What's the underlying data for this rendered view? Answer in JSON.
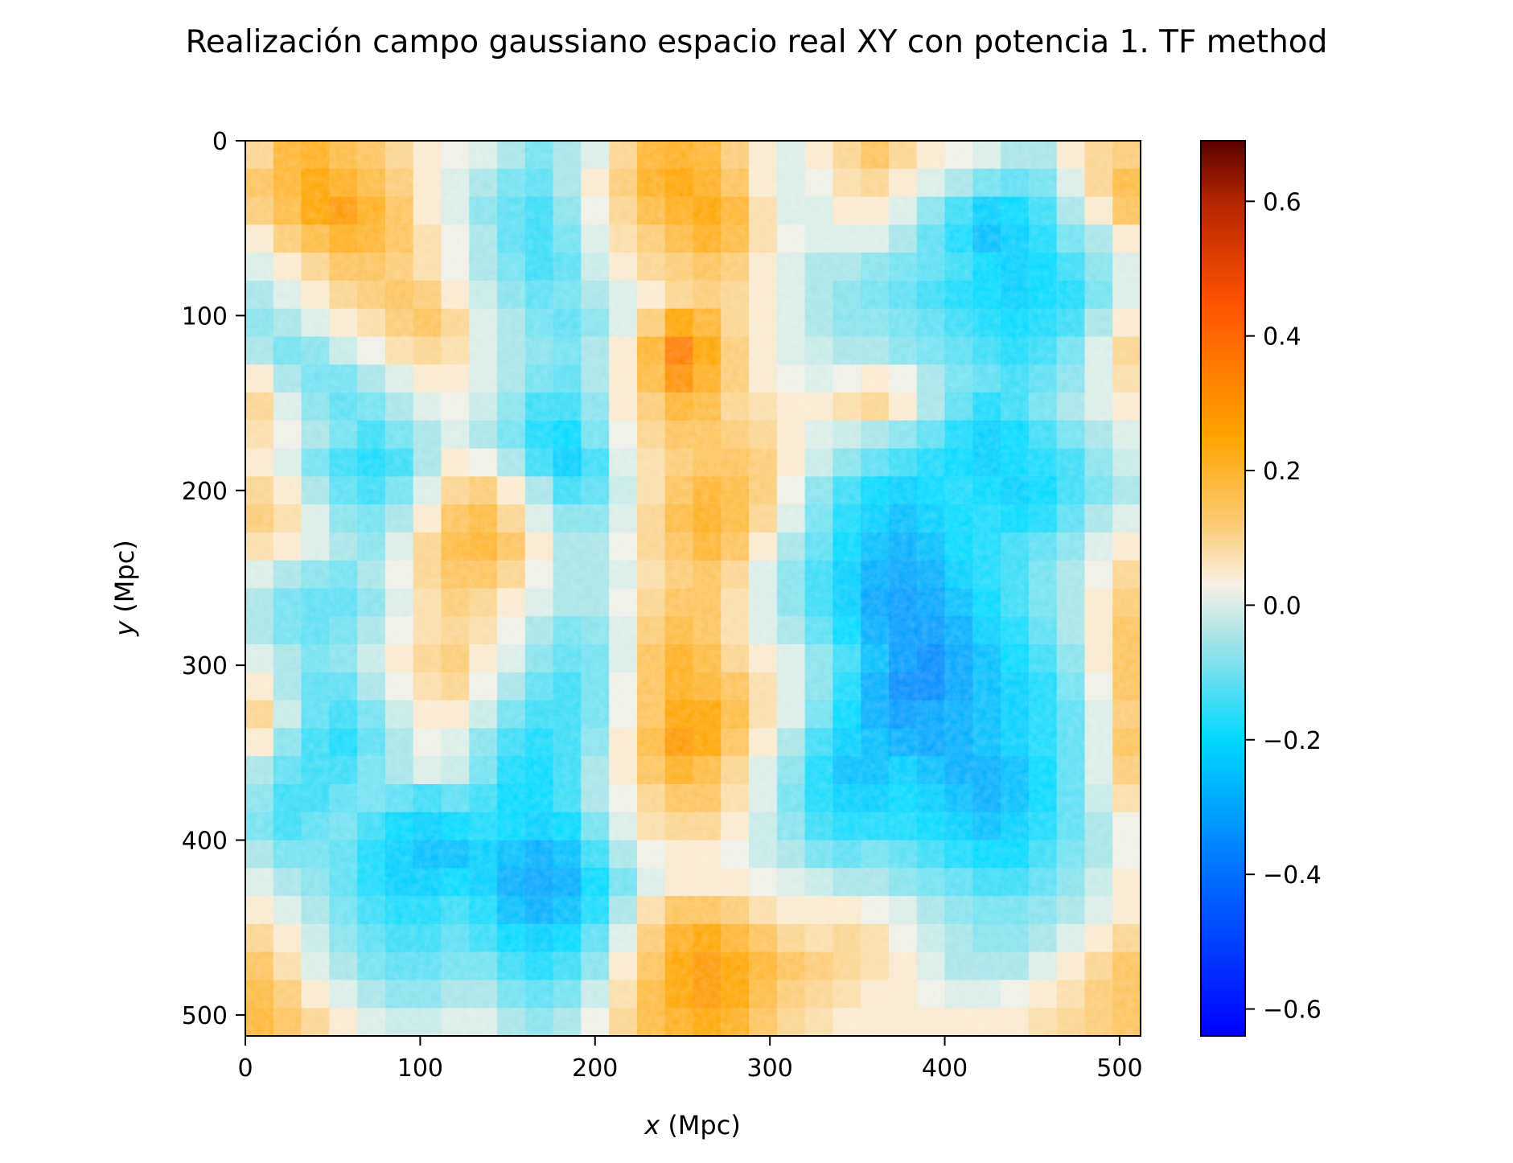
{
  "chart_data": {
    "type": "heatmap",
    "title": "Realización campo gaussiano espacio real XY con potencia 1. TF method",
    "xlabel_var": "x",
    "xlabel_unit": " (Mpc)",
    "ylabel_var": "y",
    "ylabel_unit": " (Mpc)",
    "xlim": [
      0,
      512
    ],
    "ylim": [
      512,
      0
    ],
    "y_inverted": true,
    "x_ticks": [
      0,
      100,
      200,
      300,
      400,
      500
    ],
    "y_ticks": [
      0,
      100,
      200,
      300,
      400,
      500
    ],
    "x_tick_labels": [
      "0",
      "100",
      "200",
      "300",
      "400",
      "500"
    ],
    "y_tick_labels": [
      "0",
      "100",
      "200",
      "300",
      "400",
      "500"
    ],
    "grid": false,
    "colorbar": {
      "range": [
        -0.64,
        0.69
      ],
      "ticks": [
        -0.6,
        -0.4,
        -0.2,
        0.0,
        0.2,
        0.4,
        0.6
      ],
      "tick_labels": [
        "−0.6",
        "−0.4",
        "−0.2",
        "0.0",
        "0.2",
        "0.4",
        "0.6"
      ],
      "stops": [
        {
          "v": -0.64,
          "color": "#0000ff"
        },
        {
          "v": -0.4,
          "color": "#0070ff"
        },
        {
          "v": -0.2,
          "color": "#00d8ff"
        },
        {
          "v": -0.05,
          "color": "#a6e4e8"
        },
        {
          "v": 0.03,
          "color": "#f8f1e6"
        },
        {
          "v": 0.12,
          "color": "#fccb74"
        },
        {
          "v": 0.25,
          "color": "#ffa400"
        },
        {
          "v": 0.45,
          "color": "#ff5200"
        },
        {
          "v": 0.6,
          "color": "#b42500"
        },
        {
          "v": 0.69,
          "color": "#5b0000"
        }
      ]
    },
    "field": {
      "description_values": "approximate smoothed field sampled on a 32x32 grid (rows = y 0..512, cols = x 0..512)",
      "grid_size": 32,
      "values": [
        [
          0.1,
          0.2,
          0.22,
          0.18,
          0.15,
          0.1,
          0.05,
          0.02,
          0.0,
          -0.05,
          -0.1,
          -0.05,
          0.0,
          0.1,
          0.2,
          0.22,
          0.2,
          0.12,
          0.05,
          0.0,
          0.05,
          0.1,
          0.15,
          0.1,
          0.05,
          0.02,
          0.0,
          -0.05,
          -0.05,
          0.05,
          0.1,
          0.12
        ],
        [
          0.15,
          0.2,
          0.25,
          0.22,
          0.18,
          0.12,
          0.05,
          0.0,
          -0.05,
          -0.1,
          -0.12,
          -0.05,
          0.05,
          0.12,
          0.22,
          0.25,
          0.22,
          0.15,
          0.05,
          0.0,
          0.02,
          0.08,
          0.1,
          0.05,
          0.0,
          -0.05,
          -0.1,
          -0.12,
          -0.1,
          0.0,
          0.1,
          0.18
        ],
        [
          0.12,
          0.18,
          0.25,
          0.28,
          0.22,
          0.15,
          0.05,
          0.0,
          -0.08,
          -0.12,
          -0.15,
          -0.08,
          0.02,
          0.1,
          0.18,
          0.22,
          0.25,
          0.2,
          0.08,
          0.0,
          0.0,
          0.05,
          0.05,
          0.0,
          -0.08,
          -0.15,
          -0.22,
          -0.2,
          -0.15,
          -0.05,
          0.05,
          0.15
        ],
        [
          0.05,
          0.12,
          0.18,
          0.22,
          0.2,
          0.15,
          0.08,
          0.02,
          -0.05,
          -0.12,
          -0.15,
          -0.1,
          0.0,
          0.08,
          0.12,
          0.18,
          0.22,
          0.18,
          0.08,
          0.02,
          0.0,
          0.0,
          0.0,
          -0.05,
          -0.12,
          -0.18,
          -0.25,
          -0.22,
          -0.18,
          -0.1,
          -0.05,
          0.05
        ],
        [
          0.0,
          0.05,
          0.1,
          0.15,
          0.15,
          0.12,
          0.08,
          0.02,
          -0.05,
          -0.1,
          -0.15,
          -0.12,
          -0.02,
          0.05,
          0.1,
          0.12,
          0.15,
          0.12,
          0.05,
          0.0,
          -0.05,
          -0.05,
          -0.08,
          -0.1,
          -0.12,
          -0.15,
          -0.2,
          -0.22,
          -0.2,
          -0.15,
          -0.08,
          0.0
        ],
        [
          -0.05,
          0.0,
          0.05,
          0.1,
          0.12,
          0.15,
          0.12,
          0.05,
          -0.02,
          -0.08,
          -0.12,
          -0.1,
          -0.05,
          0.0,
          0.05,
          0.1,
          0.12,
          0.1,
          0.05,
          0.0,
          -0.05,
          -0.08,
          -0.1,
          -0.12,
          -0.15,
          -0.18,
          -0.2,
          -0.22,
          -0.2,
          -0.18,
          -0.1,
          0.0
        ],
        [
          -0.08,
          -0.05,
          0.0,
          0.05,
          0.08,
          0.12,
          0.15,
          0.1,
          0.0,
          -0.05,
          -0.1,
          -0.12,
          -0.08,
          0.0,
          0.12,
          0.25,
          0.2,
          0.1,
          0.05,
          0.0,
          -0.05,
          -0.08,
          -0.08,
          -0.1,
          -0.12,
          -0.15,
          -0.18,
          -0.2,
          -0.18,
          -0.15,
          -0.05,
          0.05
        ],
        [
          -0.05,
          -0.1,
          -0.08,
          -0.02,
          0.02,
          0.08,
          0.1,
          0.08,
          0.0,
          -0.05,
          -0.08,
          -0.1,
          -0.05,
          0.05,
          0.2,
          0.35,
          0.25,
          0.12,
          0.05,
          0.0,
          -0.02,
          -0.05,
          -0.05,
          -0.08,
          -0.1,
          -0.12,
          -0.15,
          -0.18,
          -0.15,
          -0.1,
          0.0,
          0.1
        ],
        [
          0.05,
          -0.05,
          -0.1,
          -0.1,
          -0.05,
          0.0,
          0.05,
          0.05,
          0.0,
          -0.05,
          -0.1,
          -0.12,
          -0.05,
          0.05,
          0.18,
          0.3,
          0.22,
          0.12,
          0.05,
          0.02,
          0.0,
          0.02,
          0.05,
          0.02,
          -0.05,
          -0.1,
          -0.12,
          -0.15,
          -0.12,
          -0.08,
          0.0,
          0.08
        ],
        [
          0.1,
          0.0,
          -0.08,
          -0.12,
          -0.1,
          -0.05,
          0.0,
          0.02,
          -0.02,
          -0.08,
          -0.15,
          -0.15,
          -0.08,
          0.05,
          0.12,
          0.2,
          0.18,
          0.1,
          0.08,
          0.05,
          0.05,
          0.08,
          0.1,
          0.05,
          -0.05,
          -0.12,
          -0.18,
          -0.15,
          -0.1,
          -0.05,
          0.0,
          0.05
        ],
        [
          0.08,
          0.02,
          -0.05,
          -0.1,
          -0.15,
          -0.1,
          -0.05,
          0.0,
          -0.05,
          -0.1,
          -0.18,
          -0.2,
          -0.1,
          0.02,
          0.1,
          0.15,
          0.15,
          0.12,
          0.1,
          0.05,
          0.0,
          -0.02,
          -0.05,
          -0.08,
          -0.12,
          -0.18,
          -0.22,
          -0.2,
          -0.15,
          -0.1,
          -0.05,
          0.0
        ],
        [
          0.05,
          0.0,
          -0.1,
          -0.15,
          -0.18,
          -0.15,
          -0.05,
          0.05,
          0.02,
          -0.05,
          -0.15,
          -0.22,
          -0.15,
          0.0,
          0.08,
          0.12,
          0.15,
          0.15,
          0.12,
          0.05,
          -0.02,
          -0.08,
          -0.12,
          -0.15,
          -0.18,
          -0.2,
          -0.22,
          -0.2,
          -0.18,
          -0.15,
          -0.08,
          -0.02
        ],
        [
          0.1,
          0.05,
          -0.05,
          -0.12,
          -0.15,
          -0.1,
          0.0,
          0.1,
          0.12,
          0.05,
          -0.05,
          -0.15,
          -0.12,
          -0.02,
          0.08,
          0.15,
          0.2,
          0.18,
          0.12,
          0.02,
          -0.08,
          -0.15,
          -0.2,
          -0.22,
          -0.2,
          -0.18,
          -0.2,
          -0.22,
          -0.2,
          -0.15,
          -0.1,
          -0.05
        ],
        [
          0.12,
          0.08,
          0.0,
          -0.08,
          -0.1,
          -0.05,
          0.05,
          0.15,
          0.18,
          0.1,
          0.0,
          -0.08,
          -0.08,
          0.0,
          0.1,
          0.18,
          0.22,
          0.18,
          0.1,
          0.0,
          -0.1,
          -0.18,
          -0.22,
          -0.25,
          -0.22,
          -0.2,
          -0.18,
          -0.2,
          -0.18,
          -0.12,
          -0.05,
          0.0
        ],
        [
          0.08,
          0.05,
          0.0,
          -0.05,
          -0.08,
          0.0,
          0.1,
          0.18,
          0.2,
          0.15,
          0.05,
          -0.05,
          -0.05,
          0.02,
          0.1,
          0.15,
          0.2,
          0.15,
          0.05,
          -0.05,
          -0.12,
          -0.2,
          -0.25,
          -0.28,
          -0.25,
          -0.2,
          -0.18,
          -0.15,
          -0.12,
          -0.08,
          0.0,
          0.05
        ],
        [
          0.0,
          -0.05,
          -0.08,
          -0.1,
          -0.05,
          0.02,
          0.1,
          0.15,
          0.15,
          0.1,
          0.02,
          -0.05,
          -0.05,
          0.0,
          0.08,
          0.12,
          0.15,
          0.1,
          0.0,
          -0.08,
          -0.15,
          -0.22,
          -0.28,
          -0.3,
          -0.28,
          -0.22,
          -0.18,
          -0.15,
          -0.1,
          -0.05,
          0.02,
          0.1
        ],
        [
          -0.05,
          -0.1,
          -0.12,
          -0.12,
          -0.08,
          0.0,
          0.08,
          0.12,
          0.1,
          0.05,
          0.0,
          -0.05,
          -0.05,
          0.02,
          0.1,
          0.15,
          0.15,
          0.08,
          0.0,
          -0.08,
          -0.15,
          -0.22,
          -0.3,
          -0.32,
          -0.3,
          -0.25,
          -0.2,
          -0.15,
          -0.1,
          -0.05,
          0.05,
          0.12
        ],
        [
          -0.05,
          -0.1,
          -0.12,
          -0.1,
          -0.05,
          0.02,
          0.08,
          0.1,
          0.08,
          0.02,
          -0.05,
          -0.1,
          -0.08,
          0.0,
          0.12,
          0.18,
          0.15,
          0.08,
          0.0,
          -0.05,
          -0.12,
          -0.2,
          -0.28,
          -0.32,
          -0.32,
          -0.28,
          -0.22,
          -0.18,
          -0.12,
          -0.05,
          0.05,
          0.15
        ],
        [
          0.0,
          -0.05,
          -0.1,
          -0.08,
          -0.02,
          0.05,
          0.1,
          0.12,
          0.05,
          0.0,
          -0.08,
          -0.12,
          -0.1,
          0.0,
          0.15,
          0.22,
          0.18,
          0.1,
          0.05,
          0.0,
          -0.08,
          -0.15,
          -0.25,
          -0.32,
          -0.35,
          -0.3,
          -0.25,
          -0.2,
          -0.15,
          -0.08,
          0.05,
          0.15
        ],
        [
          0.05,
          -0.05,
          -0.12,
          -0.12,
          -0.05,
          0.02,
          0.08,
          0.1,
          0.02,
          -0.05,
          -0.12,
          -0.15,
          -0.1,
          0.02,
          0.15,
          0.22,
          0.2,
          0.15,
          0.08,
          0.0,
          -0.08,
          -0.18,
          -0.28,
          -0.35,
          -0.35,
          -0.3,
          -0.25,
          -0.22,
          -0.18,
          -0.1,
          0.02,
          0.15
        ],
        [
          0.1,
          -0.02,
          -0.12,
          -0.15,
          -0.1,
          -0.02,
          0.05,
          0.05,
          -0.02,
          -0.1,
          -0.15,
          -0.15,
          -0.1,
          0.02,
          0.15,
          0.25,
          0.25,
          0.18,
          0.08,
          0.0,
          -0.1,
          -0.2,
          -0.28,
          -0.32,
          -0.3,
          -0.28,
          -0.25,
          -0.22,
          -0.18,
          -0.12,
          0.0,
          0.12
        ],
        [
          0.05,
          -0.08,
          -0.15,
          -0.18,
          -0.12,
          -0.05,
          0.02,
          0.0,
          -0.08,
          -0.15,
          -0.18,
          -0.15,
          -0.08,
          0.05,
          0.18,
          0.28,
          0.25,
          0.15,
          0.05,
          -0.05,
          -0.15,
          -0.22,
          -0.25,
          -0.28,
          -0.3,
          -0.28,
          -0.25,
          -0.22,
          -0.18,
          -0.12,
          0.0,
          0.15
        ],
        [
          -0.05,
          -0.12,
          -0.15,
          -0.15,
          -0.1,
          -0.05,
          0.0,
          -0.02,
          -0.1,
          -0.18,
          -0.2,
          -0.15,
          -0.05,
          0.05,
          0.15,
          0.22,
          0.18,
          0.1,
          0.0,
          -0.08,
          -0.18,
          -0.25,
          -0.25,
          -0.22,
          -0.25,
          -0.28,
          -0.28,
          -0.25,
          -0.2,
          -0.12,
          0.0,
          0.12
        ],
        [
          -0.08,
          -0.15,
          -0.15,
          -0.12,
          -0.1,
          -0.12,
          -0.15,
          -0.12,
          -0.15,
          -0.2,
          -0.2,
          -0.15,
          -0.05,
          0.02,
          0.1,
          0.15,
          0.15,
          0.08,
          0.0,
          -0.1,
          -0.18,
          -0.22,
          -0.22,
          -0.2,
          -0.22,
          -0.25,
          -0.28,
          -0.25,
          -0.2,
          -0.12,
          -0.02,
          0.08
        ],
        [
          -0.1,
          -0.15,
          -0.12,
          -0.1,
          -0.15,
          -0.2,
          -0.22,
          -0.2,
          -0.18,
          -0.2,
          -0.22,
          -0.2,
          -0.1,
          0.0,
          0.08,
          0.1,
          0.1,
          0.05,
          -0.02,
          -0.08,
          -0.15,
          -0.18,
          -0.18,
          -0.18,
          -0.2,
          -0.22,
          -0.25,
          -0.22,
          -0.18,
          -0.12,
          -0.05,
          0.02
        ],
        [
          -0.05,
          -0.1,
          -0.1,
          -0.12,
          -0.18,
          -0.22,
          -0.25,
          -0.25,
          -0.22,
          -0.25,
          -0.28,
          -0.25,
          -0.15,
          -0.05,
          0.02,
          0.05,
          0.05,
          0.02,
          -0.02,
          -0.05,
          -0.1,
          -0.12,
          -0.1,
          -0.12,
          -0.15,
          -0.18,
          -0.2,
          -0.2,
          -0.15,
          -0.1,
          -0.05,
          0.02
        ],
        [
          0.0,
          -0.05,
          -0.08,
          -0.12,
          -0.18,
          -0.22,
          -0.22,
          -0.2,
          -0.22,
          -0.28,
          -0.3,
          -0.28,
          -0.2,
          -0.1,
          0.0,
          0.05,
          0.05,
          0.05,
          0.02,
          0.0,
          -0.02,
          -0.05,
          -0.05,
          -0.08,
          -0.1,
          -0.12,
          -0.15,
          -0.15,
          -0.12,
          -0.08,
          -0.02,
          0.05
        ],
        [
          0.05,
          0.0,
          -0.05,
          -0.1,
          -0.15,
          -0.18,
          -0.18,
          -0.15,
          -0.18,
          -0.25,
          -0.28,
          -0.25,
          -0.18,
          -0.05,
          0.08,
          0.15,
          0.15,
          0.12,
          0.08,
          0.05,
          0.05,
          0.05,
          0.02,
          0.0,
          -0.05,
          -0.08,
          -0.1,
          -0.1,
          -0.08,
          -0.05,
          0.0,
          0.05
        ],
        [
          0.1,
          0.05,
          -0.02,
          -0.08,
          -0.12,
          -0.15,
          -0.15,
          -0.12,
          -0.15,
          -0.2,
          -0.22,
          -0.2,
          -0.12,
          0.0,
          0.12,
          0.22,
          0.25,
          0.2,
          0.15,
          0.1,
          0.08,
          0.1,
          0.08,
          0.02,
          -0.02,
          -0.05,
          -0.08,
          -0.08,
          -0.05,
          0.0,
          0.05,
          0.1
        ],
        [
          0.15,
          0.08,
          0.0,
          -0.05,
          -0.1,
          -0.12,
          -0.12,
          -0.1,
          -0.1,
          -0.15,
          -0.18,
          -0.15,
          -0.08,
          0.05,
          0.15,
          0.25,
          0.28,
          0.25,
          0.2,
          0.15,
          0.12,
          0.1,
          0.08,
          0.05,
          0.0,
          -0.05,
          -0.05,
          -0.05,
          0.0,
          0.05,
          0.1,
          0.15
        ],
        [
          0.18,
          0.12,
          0.05,
          0.0,
          -0.05,
          -0.08,
          -0.08,
          -0.05,
          -0.05,
          -0.1,
          -0.12,
          -0.1,
          -0.02,
          0.08,
          0.18,
          0.25,
          0.28,
          0.25,
          0.18,
          0.12,
          0.1,
          0.08,
          0.05,
          0.05,
          0.02,
          0.0,
          0.0,
          0.02,
          0.05,
          0.08,
          0.12,
          0.15
        ],
        [
          0.2,
          0.15,
          0.1,
          0.05,
          0.0,
          -0.02,
          -0.02,
          0.0,
          0.0,
          -0.05,
          -0.08,
          -0.05,
          0.02,
          0.1,
          0.18,
          0.22,
          0.25,
          0.22,
          0.15,
          0.1,
          0.08,
          0.05,
          0.05,
          0.05,
          0.05,
          0.05,
          0.05,
          0.05,
          0.08,
          0.1,
          0.12,
          0.15
        ]
      ]
    }
  }
}
